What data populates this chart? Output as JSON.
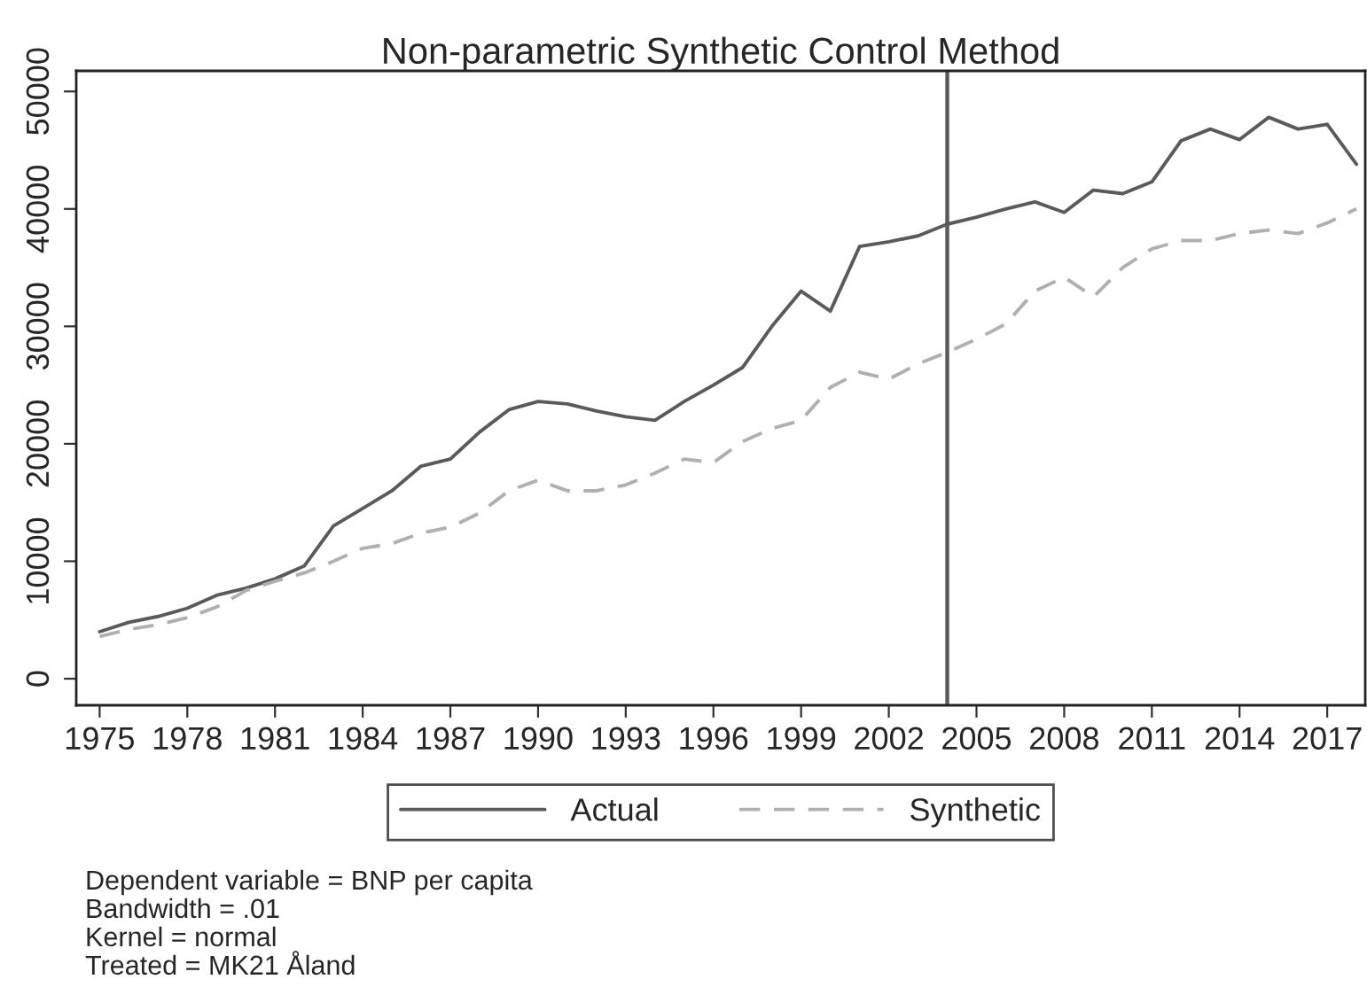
{
  "chart_data": {
    "type": "line",
    "title": "Non-parametric Synthetic Control Method",
    "x": [
      1975,
      1976,
      1977,
      1978,
      1979,
      1980,
      1981,
      1982,
      1983,
      1984,
      1985,
      1986,
      1987,
      1988,
      1989,
      1990,
      1991,
      1992,
      1993,
      1994,
      1995,
      1996,
      1997,
      1998,
      1999,
      2000,
      2001,
      2002,
      2003,
      2004,
      2005,
      2006,
      2007,
      2008,
      2009,
      2010,
      2011,
      2012,
      2013,
      2014,
      2015,
      2016,
      2017,
      2018
    ],
    "series": [
      {
        "name": "Actual",
        "color": "#5a5a5a",
        "line_style": "solid",
        "values": [
          4000,
          4800,
          5300,
          6000,
          7100,
          7700,
          8500,
          9600,
          13000,
          14500,
          16000,
          18100,
          18700,
          21000,
          22900,
          23600,
          23400,
          22800,
          22300,
          22000,
          23600,
          25000,
          26500,
          30000,
          33000,
          31300,
          36800,
          37200,
          37700,
          38700,
          39300,
          40000,
          40600,
          39700,
          41600,
          41300,
          42300,
          45800,
          46800,
          45900,
          47800,
          46800,
          47200,
          43800
        ]
      },
      {
        "name": "Synthetic",
        "color": "#b0b0b0",
        "line_style": "dashed",
        "values": [
          3600,
          4200,
          4600,
          5200,
          6100,
          7500,
          8300,
          9000,
          10000,
          11100,
          11500,
          12400,
          12900,
          14100,
          16000,
          16900,
          16000,
          16000,
          16500,
          17500,
          18700,
          18400,
          20200,
          21300,
          22000,
          24800,
          26100,
          25500,
          26800,
          27800,
          28900,
          30200,
          33000,
          34200,
          32500,
          35000,
          36600,
          37300,
          37300,
          37900,
          38200,
          37900,
          38800,
          40000
        ]
      }
    ],
    "xlim": [
      1974.2,
      2018.3
    ],
    "xticks": [
      1975,
      1978,
      1981,
      1984,
      1987,
      1990,
      1993,
      1996,
      1999,
      2002,
      2005,
      2008,
      2011,
      2014,
      2017
    ],
    "ylim": [
      -2260,
      51750
    ],
    "yticks": [
      0,
      10000,
      20000,
      30000,
      40000,
      50000
    ],
    "ref_lines": [
      {
        "axis": "x",
        "value": 2004,
        "color": "#5a5a5a",
        "line_style": "solid"
      }
    ],
    "grid": false,
    "legend": "bottom",
    "annotations": [
      "Dependent variable = BNP per capita",
      "Bandwidth = .01",
      "Kernel = normal",
      "Treated = MK21 Åland"
    ]
  }
}
